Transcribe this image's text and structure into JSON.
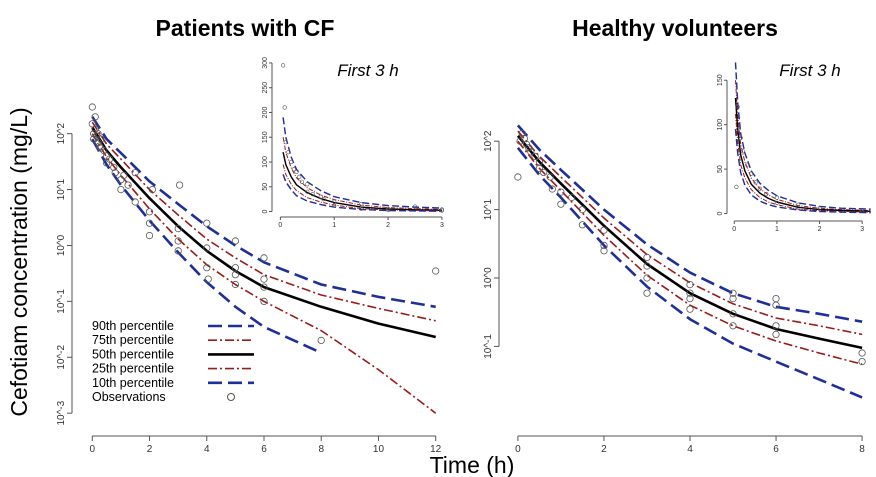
{
  "figure": {
    "ylabel": "Cefotiam concentration (mg/L)",
    "xlabel": "Time (h)"
  },
  "legend": {
    "items": [
      {
        "label": "90th percentile",
        "key": "p90"
      },
      {
        "label": "75th percentile",
        "key": "p75"
      },
      {
        "label": "50th percentile",
        "key": "p50"
      },
      {
        "label": "25th percentile",
        "key": "p25"
      },
      {
        "label": "10th percentile",
        "key": "p10"
      },
      {
        "label": "Observations",
        "key": "obs"
      }
    ]
  },
  "colors": {
    "p90": "#1f2f9a",
    "p75": "#9b1b1b",
    "p50": "#000000",
    "p25": "#9b1b1b",
    "p10": "#1f2f9a",
    "obs": "#555555"
  },
  "chart_data": [
    {
      "type": "line",
      "panel": "left",
      "title": "Patients with CF",
      "y_scale": "log",
      "xlim": [
        -0.5,
        12.5
      ],
      "ylim": [
        0.0005,
        400
      ],
      "x_ticks": [
        0,
        2,
        4,
        6,
        8,
        10,
        12
      ],
      "y_ticks": [
        {
          "value": 100,
          "label": "10^2"
        },
        {
          "value": 10,
          "label": "10^1"
        },
        {
          "value": 1,
          "label": "10^0"
        },
        {
          "value": 0.1,
          "label": "10^-1"
        },
        {
          "value": 0.01,
          "label": "10^-2"
        },
        {
          "value": 0.001,
          "label": "10^-3"
        }
      ],
      "series": [
        {
          "key": "p90",
          "x": [
            0,
            0.5,
            1,
            2,
            3,
            4,
            5,
            6,
            8,
            10,
            12
          ],
          "y": [
            200,
            80,
            45,
            14,
            5.5,
            2.2,
            1.0,
            0.5,
            0.2,
            0.12,
            0.08
          ]
        },
        {
          "key": "p75",
          "x": [
            0,
            0.5,
            1,
            2,
            3,
            4,
            5,
            6,
            8,
            10,
            12
          ],
          "y": [
            160,
            65,
            35,
            10,
            3.5,
            1.3,
            0.6,
            0.3,
            0.13,
            0.075,
            0.045
          ]
        },
        {
          "key": "p50",
          "x": [
            0,
            0.5,
            1,
            2,
            3,
            4,
            5,
            6,
            8,
            10,
            12
          ],
          "y": [
            130,
            50,
            25,
            7,
            2.2,
            0.8,
            0.35,
            0.18,
            0.08,
            0.04,
            0.023
          ]
        },
        {
          "key": "p25",
          "x": [
            0,
            0.5,
            1,
            2,
            3,
            4,
            5,
            6,
            8,
            10,
            12
          ],
          "y": [
            100,
            38,
            18,
            4.5,
            1.3,
            0.45,
            0.2,
            0.1,
            0.03,
            0.006,
            0.001
          ]
        },
        {
          "key": "p10",
          "x": [
            0,
            0.5,
            1,
            2,
            3,
            4,
            5,
            6,
            8
          ],
          "y": [
            80,
            28,
            12,
            2.8,
            0.75,
            0.22,
            0.08,
            0.035,
            0.012
          ]
        }
      ],
      "observations": {
        "x": [
          0,
          0,
          0.05,
          0.05,
          0.1,
          0.1,
          0.15,
          0.2,
          0.2,
          0.25,
          0.3,
          0.3,
          0.4,
          0.5,
          0.5,
          0.6,
          0.75,
          0.8,
          1,
          1,
          1.1,
          1.25,
          1.5,
          1.5,
          2,
          2,
          2,
          2.1,
          3,
          3,
          3,
          3.05,
          4,
          4,
          4,
          4.05,
          5,
          5,
          5,
          5,
          6,
          6,
          6,
          6,
          8,
          12
        ],
        "y": [
          300,
          150,
          100,
          80,
          200,
          120,
          90,
          100,
          70,
          60,
          80,
          55,
          50,
          40,
          30,
          35,
          25,
          20,
          15,
          10,
          18,
          12,
          6,
          20,
          4,
          2.5,
          1.5,
          10,
          1.2,
          2,
          0.8,
          12,
          0.4,
          0.9,
          2.5,
          0.25,
          0.3,
          1.2,
          0.2,
          0.4,
          0.1,
          0.6,
          0.25,
          0.18,
          0.02,
          0.35
        ]
      },
      "inset": {
        "title": "First 3 h",
        "xlim": [
          -0.1,
          3.15
        ],
        "ylim": [
          -5,
          310
        ],
        "x_ticks": [
          0,
          1,
          2,
          3
        ],
        "y_ticks": [
          0,
          50,
          100,
          150,
          200,
          250,
          300
        ],
        "series": [
          {
            "key": "p90",
            "x": [
              0.05,
              0.1,
              0.2,
              0.3,
              0.5,
              0.75,
              1,
              1.5,
              2,
              2.5,
              3
            ],
            "y": [
              190,
              150,
              110,
              85,
              60,
              42,
              30,
              18,
              12,
              9,
              7
            ]
          },
          {
            "key": "p75",
            "x": [
              0.05,
              0.1,
              0.2,
              0.3,
              0.5,
              0.75,
              1,
              1.5,
              2,
              2.5,
              3
            ],
            "y": [
              150,
              120,
              88,
              68,
              48,
              33,
              24,
              13,
              8,
              6,
              4
            ]
          },
          {
            "key": "p50",
            "x": [
              0.05,
              0.1,
              0.2,
              0.3,
              0.5,
              0.75,
              1,
              1.5,
              2,
              2.5,
              3
            ],
            "y": [
              120,
              95,
              70,
              54,
              38,
              26,
              18,
              9,
              5,
              3.5,
              2.5
            ]
          },
          {
            "key": "p25",
            "x": [
              0.05,
              0.1,
              0.2,
              0.3,
              0.5,
              0.75,
              1,
              1.5,
              2,
              2.5,
              3
            ],
            "y": [
              95,
              75,
              55,
              42,
              28,
              19,
              13,
              6,
              3,
              2,
              1.2
            ]
          },
          {
            "key": "p10",
            "x": [
              0.05,
              0.1,
              0.2,
              0.3,
              0.5,
              0.75,
              1,
              1.5,
              2,
              2.5,
              3
            ],
            "y": [
              75,
              60,
              44,
              32,
              21,
              14,
              9,
              4,
              2,
              1.2,
              0.7
            ]
          }
        ],
        "observations": {
          "x": [
            0.05,
            0.08,
            0.1,
            0.15,
            0.2,
            0.25,
            0.3,
            0.35,
            0.4,
            0.5,
            0.5,
            0.6,
            0.75,
            0.8,
            1,
            1,
            1.5,
            1.5,
            2,
            2,
            2.5,
            3,
            3
          ],
          "y": [
            295,
            210,
            140,
            120,
            100,
            85,
            80,
            70,
            60,
            55,
            40,
            35,
            30,
            25,
            20,
            12,
            15,
            6,
            5,
            3,
            10,
            4,
            2
          ]
        }
      }
    },
    {
      "type": "line",
      "panel": "right",
      "title": "Healthy volunteers",
      "y_scale": "log",
      "xlim": [
        -0.3,
        8.3
      ],
      "ylim": [
        0.006,
        400
      ],
      "x_ticks": [
        0,
        2,
        4,
        6,
        8
      ],
      "y_ticks": [
        {
          "value": 100,
          "label": "10^2"
        },
        {
          "value": 10,
          "label": "10^1"
        },
        {
          "value": 1,
          "label": "10^0"
        },
        {
          "value": 0.1,
          "label": "10^-1"
        }
      ],
      "series": [
        {
          "key": "p90",
          "x": [
            0,
            0.5,
            1,
            2,
            3,
            4,
            5,
            6,
            7,
            8
          ],
          "y": [
            170,
            75,
            38,
            10,
            3.1,
            1.2,
            0.6,
            0.38,
            0.3,
            0.23
          ]
        },
        {
          "key": "p75",
          "x": [
            0,
            0.5,
            1,
            2,
            3,
            4,
            5,
            6,
            7,
            8
          ],
          "y": [
            140,
            60,
            30,
            7.5,
            2.2,
            0.85,
            0.42,
            0.26,
            0.2,
            0.15
          ]
        },
        {
          "key": "p50",
          "x": [
            0,
            0.5,
            1,
            2,
            3,
            4,
            5,
            6,
            7,
            8
          ],
          "y": [
            120,
            50,
            24,
            5.8,
            1.6,
            0.6,
            0.3,
            0.18,
            0.13,
            0.095
          ]
        },
        {
          "key": "p25",
          "x": [
            0,
            0.5,
            1,
            2,
            3,
            4,
            5,
            6,
            7,
            8
          ],
          "y": [
            100,
            40,
            19,
            4.2,
            1.1,
            0.4,
            0.2,
            0.12,
            0.08,
            0.055
          ]
        },
        {
          "key": "p10",
          "x": [
            0,
            0.5,
            1,
            2,
            3,
            4,
            5,
            6,
            7,
            8
          ],
          "y": [
            80,
            32,
            15,
            3.0,
            0.75,
            0.25,
            0.11,
            0.06,
            0.033,
            0.018
          ]
        }
      ],
      "observations": {
        "x": [
          0,
          0.05,
          0.1,
          0.15,
          0.2,
          0.25,
          0.3,
          0.4,
          0.5,
          0.5,
          0.6,
          0.75,
          0.8,
          1,
          1,
          1.25,
          1.5,
          1.5,
          2,
          2,
          2,
          3,
          3,
          3,
          3,
          4,
          4,
          4,
          4,
          5,
          5,
          5,
          5,
          6,
          6,
          6,
          6,
          8,
          8
        ],
        "y": [
          30,
          100,
          130,
          110,
          90,
          80,
          70,
          60,
          50,
          40,
          35,
          30,
          20,
          18,
          12,
          15,
          10,
          6,
          5,
          3,
          2.5,
          2,
          1.5,
          1,
          0.6,
          0.8,
          0.5,
          0.35,
          0.6,
          0.5,
          0.3,
          0.2,
          0.6,
          0.4,
          0.2,
          0.15,
          0.5,
          0.08,
          0.06
        ]
      },
      "inset": {
        "title": "First 3 h",
        "xlim": [
          -0.1,
          3.3
        ],
        "ylim": [
          -5,
          175
        ],
        "x_ticks": [
          0,
          1,
          2,
          3
        ],
        "y_ticks": [
          0,
          50,
          100,
          150
        ],
        "series": [
          {
            "key": "p90",
            "x": [
              0.03,
              0.08,
              0.15,
              0.25,
              0.4,
              0.6,
              0.8,
              1,
              1.5,
              2,
              2.5,
              3.2
            ],
            "y": [
              170,
              125,
              90,
              68,
              48,
              34,
              26,
              20,
              12,
              8,
              6,
              5
            ]
          },
          {
            "key": "p75",
            "x": [
              0.03,
              0.08,
              0.15,
              0.25,
              0.4,
              0.6,
              0.8,
              1,
              1.5,
              2,
              2.5,
              3.2
            ],
            "y": [
              150,
              110,
              78,
              58,
              40,
              28,
              21,
              16,
              9,
              6,
              4.5,
              3.5
            ]
          },
          {
            "key": "p50",
            "x": [
              0.03,
              0.08,
              0.15,
              0.25,
              0.4,
              0.6,
              0.8,
              1,
              1.5,
              2,
              2.5,
              3.2
            ],
            "y": [
              130,
              95,
              66,
              48,
              33,
              23,
              17,
              13,
              7,
              4.5,
              3.5,
              2.5
            ]
          },
          {
            "key": "p25",
            "x": [
              0.03,
              0.08,
              0.15,
              0.25,
              0.4,
              0.6,
              0.8,
              1,
              1.5,
              2,
              2.5,
              3.2
            ],
            "y": [
              112,
              80,
              55,
              40,
              27,
              18,
              13,
              10,
              5,
              3.2,
              2.4,
              1.6
            ]
          },
          {
            "key": "p10",
            "x": [
              0.03,
              0.08,
              0.15,
              0.25,
              0.4,
              0.6,
              0.8,
              1,
              1.5,
              2,
              2.5,
              3.2
            ],
            "y": [
              95,
              68,
              46,
              32,
              21,
              14,
              10,
              7.5,
              4,
              2.3,
              1.6,
              1
            ]
          }
        ],
        "observations": {
          "x": [
            0.05,
            0.08,
            0.1,
            0.15,
            0.2,
            0.3,
            0.4,
            0.5,
            0.6,
            0.75,
            1,
            1,
            1.5,
            2,
            3
          ],
          "y": [
            30,
            120,
            95,
            85,
            70,
            55,
            45,
            35,
            28,
            22,
            18,
            12,
            10,
            6,
            4
          ]
        }
      }
    }
  ]
}
